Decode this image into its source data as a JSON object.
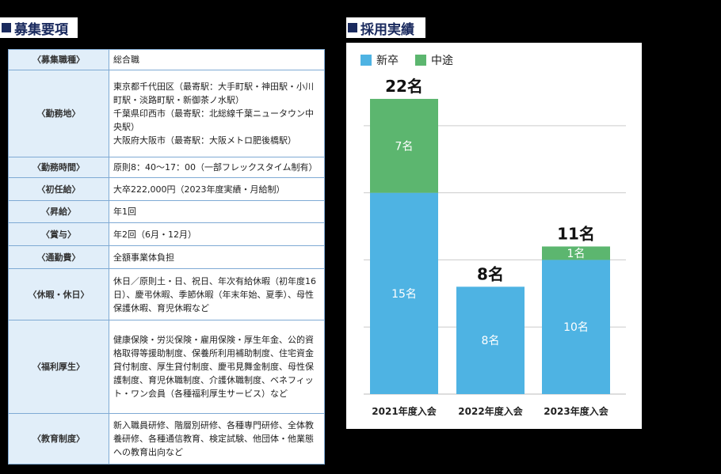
{
  "headings": {
    "requirements": "募集要項",
    "results": "採用実績"
  },
  "requirements": [
    {
      "key": "〈募集職種〉",
      "value": [
        "総合職"
      ]
    },
    {
      "key": "〈勤務地〉",
      "value": [
        "東京都千代田区（最寄駅：大手町駅・神田駅・小川町駅・淡路町駅・新御茶ノ水駅）",
        "千葉県印西市（最寄駅：北総線千葉ニュータウン中央駅）",
        "大阪府大阪市（最寄駅：大阪メトロ肥後橋駅）"
      ]
    },
    {
      "key": "〈勤務時間〉",
      "value": [
        "原則8：40～17：00（一部フレックスタイム制有）"
      ]
    },
    {
      "key": "〈初任給〉",
      "value": [
        "大卒222,000円（2023年度実績・月給制）"
      ]
    },
    {
      "key": "〈昇給〉",
      "value": [
        "年1回"
      ]
    },
    {
      "key": "〈賞与〉",
      "value": [
        "年2回（6月・12月）"
      ]
    },
    {
      "key": "〈通勤費〉",
      "value": [
        "全額事業体負担"
      ]
    },
    {
      "key": "〈休暇・休日〉",
      "value": [
        "休日／原則土・日、祝日、年次有給休暇（初年度16日）、慶弔休暇、季節休暇（年末年始、夏季）、母性保護休暇、育児休暇など"
      ]
    },
    {
      "key": "〈福利厚生〉",
      "value": [
        "健康保険・労災保険・雇用保険・厚生年金、公的資格取得等援助制度、保養所利用補助制度、住宅資金貸付制度、厚生貸付制度、慶弔見舞金制度、母性保護制度、育児休職制度、介護休職制度、ベネフィット・ワン会員（各種福利厚生サービス）など"
      ]
    },
    {
      "key": "〈教育制度〉",
      "value": [
        "新入職員研修、階層別研修、各種専門研修、全体教養研修、各種通信教育、検定試験、他団体・他業態への教育出向など"
      ]
    }
  ],
  "chart_data": {
    "type": "bar",
    "stacked": true,
    "categories": [
      "2021年度入会",
      "2022年度入会",
      "2023年度入会"
    ],
    "series": [
      {
        "name": "新卒",
        "values": [
          15,
          8,
          10
        ],
        "labels": [
          "15名",
          "8名",
          "10名"
        ],
        "color": "#4eb3e3"
      },
      {
        "name": "中途",
        "values": [
          7,
          0,
          1
        ],
        "labels": [
          "7名",
          "",
          "1名"
        ],
        "color": "#5cb66f"
      }
    ],
    "totals": [
      "22名",
      "8名",
      "11名"
    ],
    "ylim": [
      0,
      23
    ],
    "grid": true,
    "legend": "top-left"
  }
}
